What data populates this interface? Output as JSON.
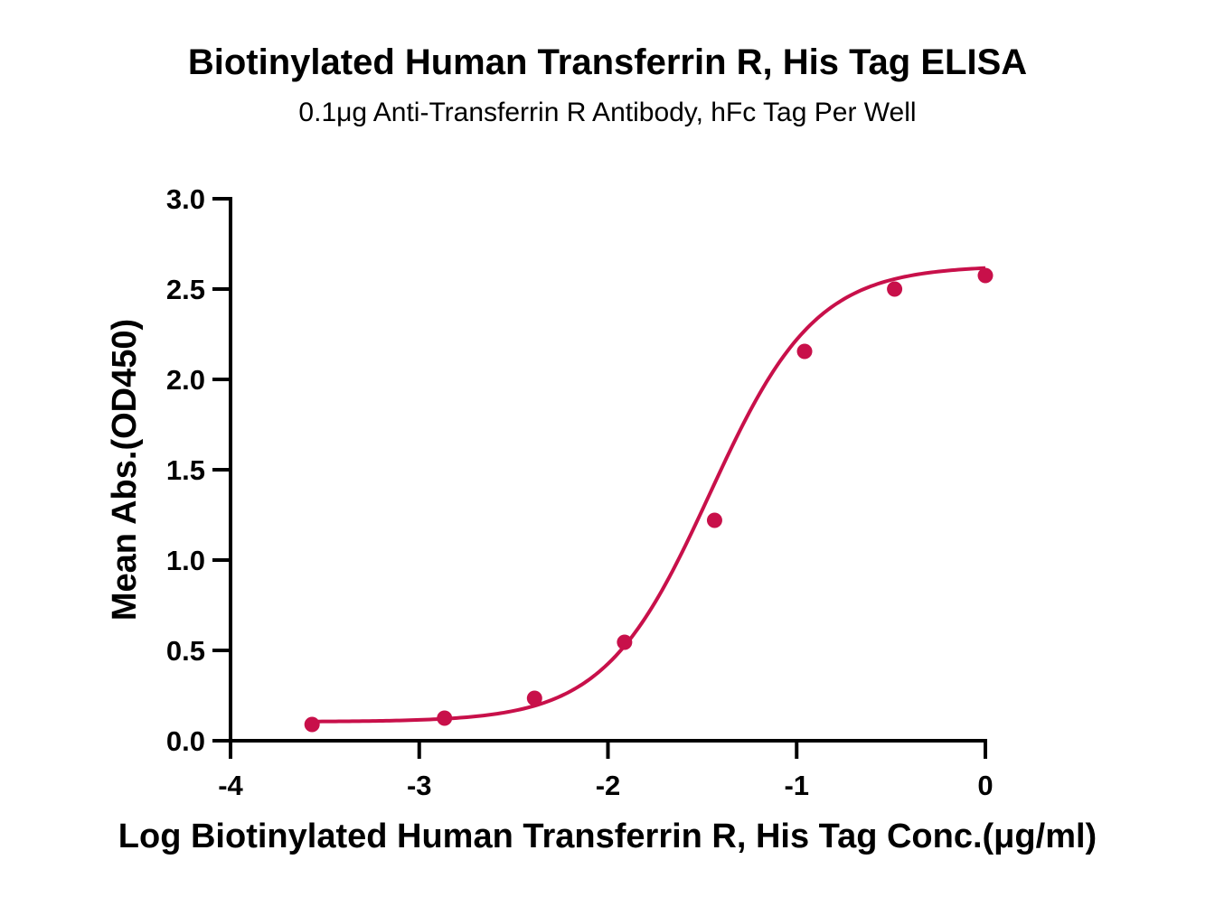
{
  "chart_data": {
    "type": "scatter",
    "title": "Biotinylated Human Transferrin R, His Tag ELISA",
    "subtitle": "0.1μg Anti-Transferrin R Antibody, hFc Tag Per Well",
    "xlabel": "Log Biotinylated Human Transferrin R, His Tag Conc.(μg/ml)",
    "ylabel": "Mean Abs.(OD450)",
    "xlim": [
      -4,
      0
    ],
    "ylim": [
      0,
      3.0
    ],
    "x_ticks": [
      "-4",
      "-3",
      "-2",
      "-1",
      "0"
    ],
    "y_ticks": [
      "0.0",
      "0.5",
      "1.0",
      "1.5",
      "2.0",
      "2.5",
      "3.0"
    ],
    "grid": false,
    "color": "#c8104a",
    "series": [
      {
        "x": [
          -3.568,
          -2.866,
          -2.389,
          -1.912,
          -1.435,
          -0.958,
          -0.481,
          0.0
        ],
        "y": [
          0.09,
          0.125,
          0.235,
          0.545,
          1.22,
          2.155,
          2.5,
          2.575
        ]
      }
    ],
    "fit_curve": {
      "model": "4PL",
      "bottom": 0.105,
      "top": 2.63,
      "log_ec50": -1.46,
      "hill_slope": 1.55
    }
  }
}
